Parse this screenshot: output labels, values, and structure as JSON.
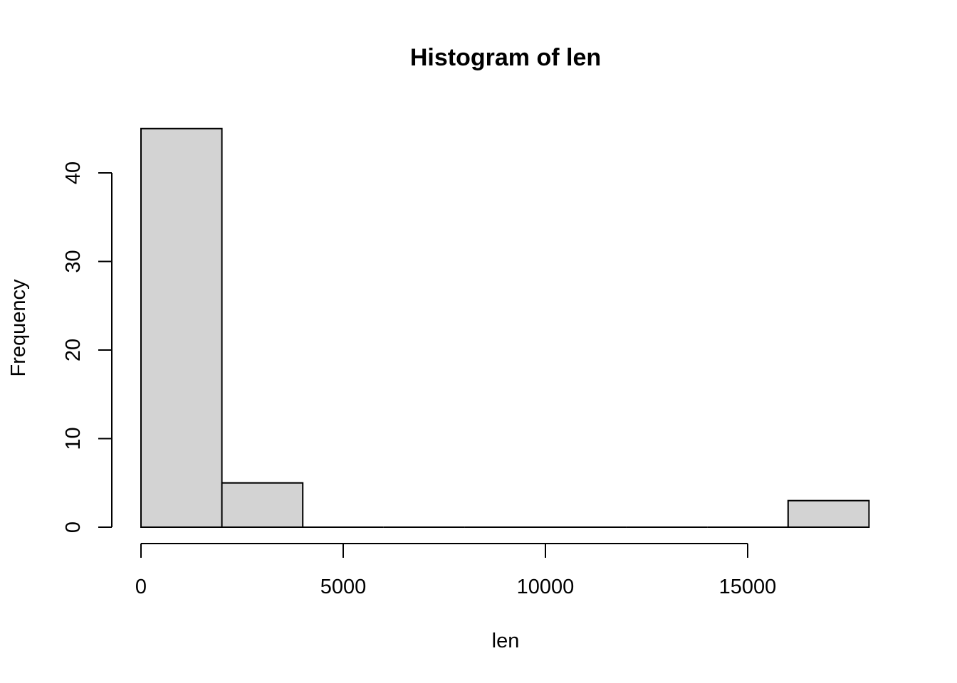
{
  "chart_data": {
    "type": "bar",
    "title": "Histogram of len",
    "xlabel": "len",
    "ylabel": "Frequency",
    "bins": [
      {
        "from": 0,
        "to": 2000,
        "count": 45
      },
      {
        "from": 2000,
        "to": 4000,
        "count": 5
      },
      {
        "from": 4000,
        "to": 6000,
        "count": 0
      },
      {
        "from": 6000,
        "to": 8000,
        "count": 0
      },
      {
        "from": 8000,
        "to": 10000,
        "count": 0
      },
      {
        "from": 10000,
        "to": 12000,
        "count": 0
      },
      {
        "from": 12000,
        "to": 14000,
        "count": 0
      },
      {
        "from": 14000,
        "to": 16000,
        "count": 0
      },
      {
        "from": 16000,
        "to": 18000,
        "count": 3
      }
    ],
    "x_ticks": [
      0,
      5000,
      10000,
      15000
    ],
    "y_ticks": [
      0,
      10,
      20,
      30,
      40
    ],
    "xlim": [
      0,
      18000
    ],
    "ylim": [
      0,
      45
    ],
    "grid": false,
    "bar_color": "#D3D3D3",
    "edge_color": "#000000"
  }
}
